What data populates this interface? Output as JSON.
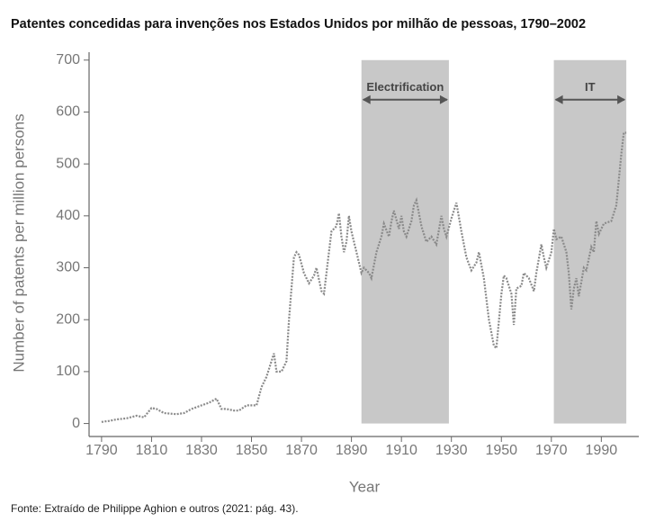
{
  "chart_data": {
    "type": "line",
    "title": "Patentes concedidas para invenções nos Estados Unidos por milhão de pessoas, 1790–2002",
    "source": "Fonte: Extraído de Philippe Aghion e outros (2021: pág. 43).",
    "x_label": "Year",
    "y_label": "Number of patents per million persons",
    "color": "#8a8a8a",
    "x": [
      1790,
      1793,
      1796,
      1800,
      1804,
      1807,
      1810,
      1812,
      1815,
      1820,
      1823,
      1826,
      1830,
      1833,
      1836,
      1838,
      1840,
      1843,
      1845,
      1848,
      1850,
      1852,
      1854,
      1856,
      1858,
      1859,
      1860,
      1862,
      1864,
      1865,
      1867,
      1868,
      1869,
      1871,
      1873,
      1875,
      1876,
      1878,
      1879,
      1881,
      1882,
      1884,
      1885,
      1886,
      1887,
      1888,
      1889,
      1890,
      1892,
      1894,
      1895,
      1897,
      1898,
      1900,
      1902,
      1903,
      1905,
      1906,
      1907,
      1909,
      1910,
      1911,
      1912,
      1914,
      1915,
      1916,
      1918,
      1920,
      1922,
      1924,
      1926,
      1927,
      1928,
      1930,
      1932,
      1934,
      1936,
      1938,
      1940,
      1941,
      1943,
      1945,
      1947,
      1948,
      1950,
      1951,
      1952,
      1954,
      1955,
      1956,
      1958,
      1959,
      1961,
      1963,
      1964,
      1966,
      1967,
      1968,
      1970,
      1971,
      1972,
      1974,
      1976,
      1977,
      1978,
      1979,
      1980,
      1981,
      1983,
      1984,
      1986,
      1987,
      1988,
      1989,
      1991,
      1994,
      1996,
      1997,
      1998,
      1999,
      2000
    ],
    "values": [
      3,
      5,
      8,
      10,
      15,
      12,
      30,
      28,
      20,
      18,
      20,
      28,
      35,
      40,
      48,
      28,
      28,
      25,
      25,
      35,
      35,
      35,
      70,
      90,
      120,
      135,
      100,
      100,
      120,
      200,
      320,
      330,
      325,
      290,
      270,
      285,
      300,
      255,
      250,
      330,
      370,
      380,
      405,
      360,
      330,
      350,
      400,
      370,
      330,
      290,
      300,
      290,
      280,
      330,
      360,
      385,
      360,
      390,
      410,
      375,
      400,
      370,
      360,
      390,
      420,
      430,
      380,
      350,
      360,
      345,
      400,
      375,
      360,
      395,
      425,
      370,
      320,
      295,
      310,
      330,
      280,
      200,
      150,
      145,
      250,
      285,
      280,
      250,
      190,
      260,
      265,
      290,
      280,
      255,
      290,
      345,
      320,
      300,
      330,
      375,
      355,
      360,
      330,
      290,
      220,
      260,
      280,
      245,
      300,
      295,
      340,
      330,
      390,
      365,
      385,
      390,
      420,
      470,
      520,
      560,
      560
    ],
    "xlim": [
      1785,
      2005
    ],
    "ylim": [
      -25,
      710
    ],
    "xticks": [
      1790,
      1810,
      1830,
      1850,
      1870,
      1890,
      1910,
      1930,
      1950,
      1970,
      1990
    ],
    "yticks": [
      0,
      100,
      200,
      300,
      400,
      500,
      600,
      700
    ],
    "shaded_regions": [
      {
        "label": "Electrification",
        "start": 1894,
        "end": 1929,
        "y0": 0,
        "y1": 700,
        "color": "#c8c8c8"
      },
      {
        "label": "IT",
        "start": 1971,
        "end": 2000,
        "y0": 0,
        "y1": 700,
        "color": "#c8c8c8"
      }
    ]
  }
}
